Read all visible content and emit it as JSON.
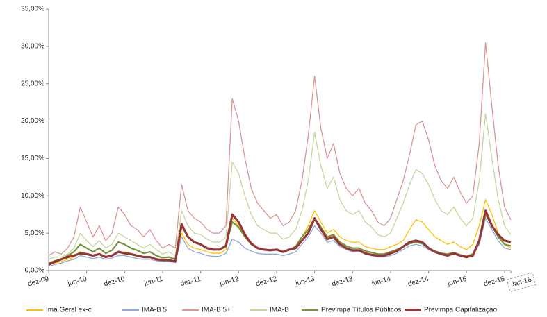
{
  "chart_data": {
    "type": "line",
    "categories": [
      "dez-09",
      null,
      null,
      null,
      null,
      null,
      "jun-10",
      null,
      null,
      null,
      null,
      null,
      "dez-10",
      null,
      null,
      null,
      null,
      null,
      "jun-11",
      null,
      null,
      null,
      null,
      null,
      "dez-11",
      null,
      null,
      null,
      null,
      null,
      "jun-12",
      null,
      null,
      null,
      null,
      null,
      "dez-12",
      null,
      null,
      null,
      null,
      null,
      "jun-13",
      null,
      null,
      null,
      null,
      null,
      "dez-13",
      null,
      null,
      null,
      null,
      null,
      "jun-14",
      null,
      null,
      null,
      null,
      null,
      "dez-14",
      null,
      null,
      null,
      null,
      null,
      "jun-15",
      null,
      null,
      null,
      null,
      null,
      "dez-15",
      "Jan-16"
    ],
    "series": [
      {
        "name": "Ima Geral ex-c",
        "color": "#ffc000",
        "width": 1.3,
        "values": [
          0.8,
          1.0,
          1.2,
          1.5,
          1.8,
          2.5,
          2.3,
          2.0,
          2.2,
          1.8,
          2.0,
          2.5,
          2.5,
          2.3,
          2.0,
          1.8,
          1.8,
          1.6,
          1.4,
          1.4,
          1.3,
          5.0,
          3.5,
          3.0,
          2.8,
          2.5,
          2.3,
          2.3,
          2.8,
          7.0,
          6.0,
          4.5,
          3.5,
          3.0,
          2.8,
          2.8,
          2.8,
          2.5,
          2.8,
          3.2,
          4.5,
          6.0,
          8.0,
          6.5,
          5.0,
          5.5,
          4.5,
          4.0,
          3.8,
          3.8,
          3.2,
          3.0,
          2.8,
          2.8,
          3.2,
          3.5,
          4.0,
          5.5,
          6.8,
          6.5,
          5.5,
          4.5,
          4.0,
          3.5,
          3.8,
          3.2,
          2.8,
          3.5,
          6.0,
          9.5,
          7.5,
          5.0,
          3.5,
          3.0
        ]
      },
      {
        "name": "IMA-B 5",
        "color": "#8faadc",
        "width": 1.3,
        "values": [
          0.6,
          0.8,
          1.0,
          1.3,
          1.5,
          2.0,
          1.8,
          1.6,
          1.8,
          1.5,
          1.7,
          2.0,
          2.0,
          1.8,
          1.6,
          1.5,
          1.5,
          1.3,
          1.2,
          1.2,
          1.1,
          4.5,
          3.0,
          2.5,
          2.3,
          2.0,
          1.9,
          1.9,
          2.3,
          4.2,
          3.8,
          3.0,
          2.6,
          2.3,
          2.2,
          2.2,
          2.2,
          2.0,
          2.2,
          2.5,
          3.5,
          4.5,
          6.0,
          5.0,
          3.8,
          4.0,
          3.2,
          2.8,
          2.5,
          2.6,
          2.2,
          2.0,
          1.8,
          1.8,
          2.0,
          2.3,
          2.8,
          3.3,
          3.5,
          3.3,
          2.8,
          2.4,
          2.2,
          2.0,
          2.2,
          1.9,
          1.7,
          2.0,
          3.5,
          7.0,
          5.5,
          4.0,
          3.0,
          2.8
        ]
      },
      {
        "name": "IMA-B 5+",
        "color": "#d99694",
        "width": 1.3,
        "values": [
          2.0,
          2.5,
          2.2,
          3.0,
          4.5,
          8.5,
          6.5,
          4.5,
          6.0,
          4.0,
          5.0,
          8.5,
          7.5,
          6.0,
          5.5,
          4.5,
          5.5,
          4.0,
          3.0,
          3.5,
          3.0,
          11.5,
          8.0,
          7.0,
          6.5,
          5.5,
          5.0,
          5.0,
          6.0,
          23.0,
          20.0,
          15.0,
          11.0,
          9.0,
          8.0,
          7.0,
          7.5,
          6.0,
          6.5,
          8.0,
          12.0,
          18.0,
          26.0,
          19.0,
          15.0,
          17.0,
          13.0,
          11.0,
          10.0,
          11.0,
          9.0,
          8.0,
          6.5,
          6.0,
          7.0,
          9.5,
          12.0,
          15.5,
          19.5,
          20.0,
          17.5,
          14.0,
          12.0,
          11.0,
          12.5,
          10.5,
          9.0,
          10.0,
          17.0,
          30.5,
          22.0,
          14.0,
          8.5,
          6.8
        ]
      },
      {
        "name": "IMA-B",
        "color": "#c3d69b",
        "width": 1.3,
        "values": [
          1.5,
          1.8,
          1.8,
          2.2,
          3.0,
          5.0,
          4.0,
          3.2,
          4.0,
          3.0,
          3.5,
          5.0,
          4.5,
          4.0,
          3.5,
          3.0,
          3.5,
          2.8,
          2.2,
          2.5,
          2.0,
          8.0,
          6.0,
          5.0,
          4.8,
          4.2,
          3.8,
          3.8,
          4.5,
          14.5,
          13.0,
          10.0,
          7.5,
          6.0,
          5.5,
          5.0,
          5.0,
          4.2,
          4.5,
          5.5,
          8.0,
          12.0,
          18.5,
          14.0,
          11.0,
          12.5,
          9.5,
          8.0,
          7.5,
          8.0,
          6.5,
          5.8,
          4.8,
          4.5,
          5.0,
          7.0,
          9.0,
          11.5,
          13.5,
          13.0,
          11.5,
          9.5,
          8.0,
          7.5,
          8.5,
          7.0,
          6.0,
          7.0,
          12.0,
          21.0,
          15.0,
          9.5,
          6.0,
          4.8
        ]
      },
      {
        "name": "Previmpa Títulos Públicos",
        "color": "#77933c",
        "width": 2.2,
        "values": [
          1.0,
          1.3,
          1.5,
          2.0,
          2.5,
          3.5,
          3.0,
          2.5,
          3.0,
          2.3,
          2.7,
          3.8,
          3.5,
          3.0,
          2.7,
          2.3,
          2.5,
          2.0,
          1.7,
          1.8,
          1.5,
          6.0,
          4.5,
          3.8,
          3.5,
          3.0,
          2.8,
          2.8,
          3.3,
          6.5,
          5.8,
          4.5,
          3.5,
          3.0,
          2.8,
          2.7,
          2.8,
          2.5,
          2.8,
          3.2,
          4.5,
          5.5,
          7.0,
          5.8,
          4.5,
          4.8,
          3.8,
          3.3,
          3.0,
          3.0,
          2.6,
          2.4,
          2.2,
          2.2,
          2.5,
          2.8,
          3.2,
          3.6,
          3.8,
          3.6,
          3.0,
          2.6,
          2.3,
          2.2,
          2.4,
          2.1,
          1.9,
          2.2,
          4.0,
          7.5,
          6.0,
          4.5,
          3.5,
          3.3
        ]
      },
      {
        "name": "Previmpa Capitalização",
        "color": "#953735",
        "width": 3.2,
        "values": [
          0.8,
          1.2,
          1.5,
          1.8,
          2.0,
          2.3,
          2.2,
          2.0,
          2.2,
          1.8,
          2.0,
          2.5,
          2.3,
          2.2,
          2.0,
          1.8,
          1.8,
          1.5,
          1.4,
          1.4,
          1.2,
          6.2,
          4.5,
          3.8,
          3.5,
          3.0,
          2.8,
          2.8,
          3.3,
          7.5,
          6.5,
          4.8,
          3.6,
          3.0,
          2.8,
          2.7,
          2.8,
          2.5,
          2.8,
          3.0,
          4.0,
          5.0,
          7.0,
          5.5,
          4.2,
          4.5,
          3.5,
          3.0,
          2.7,
          2.7,
          2.3,
          2.1,
          2.0,
          2.0,
          2.3,
          2.6,
          3.2,
          3.8,
          4.0,
          3.8,
          3.0,
          2.5,
          2.2,
          2.0,
          2.3,
          2.0,
          1.8,
          2.0,
          4.0,
          8.0,
          6.0,
          4.8,
          4.0,
          3.8
        ]
      }
    ],
    "ylim": [
      0,
      35
    ],
    "yticks": [
      {
        "value": 0,
        "label": "0,00%"
      },
      {
        "value": 5,
        "label": "5,00%"
      },
      {
        "value": 10,
        "label": "10,00%"
      },
      {
        "value": 15,
        "label": "15,00%"
      },
      {
        "value": 20,
        "label": "20,00%"
      },
      {
        "value": 25,
        "label": "25,00%"
      },
      {
        "value": 30,
        "label": "30,00%"
      },
      {
        "value": 35,
        "label": "35,00%"
      }
    ],
    "grid": false,
    "legend": "bottom"
  }
}
